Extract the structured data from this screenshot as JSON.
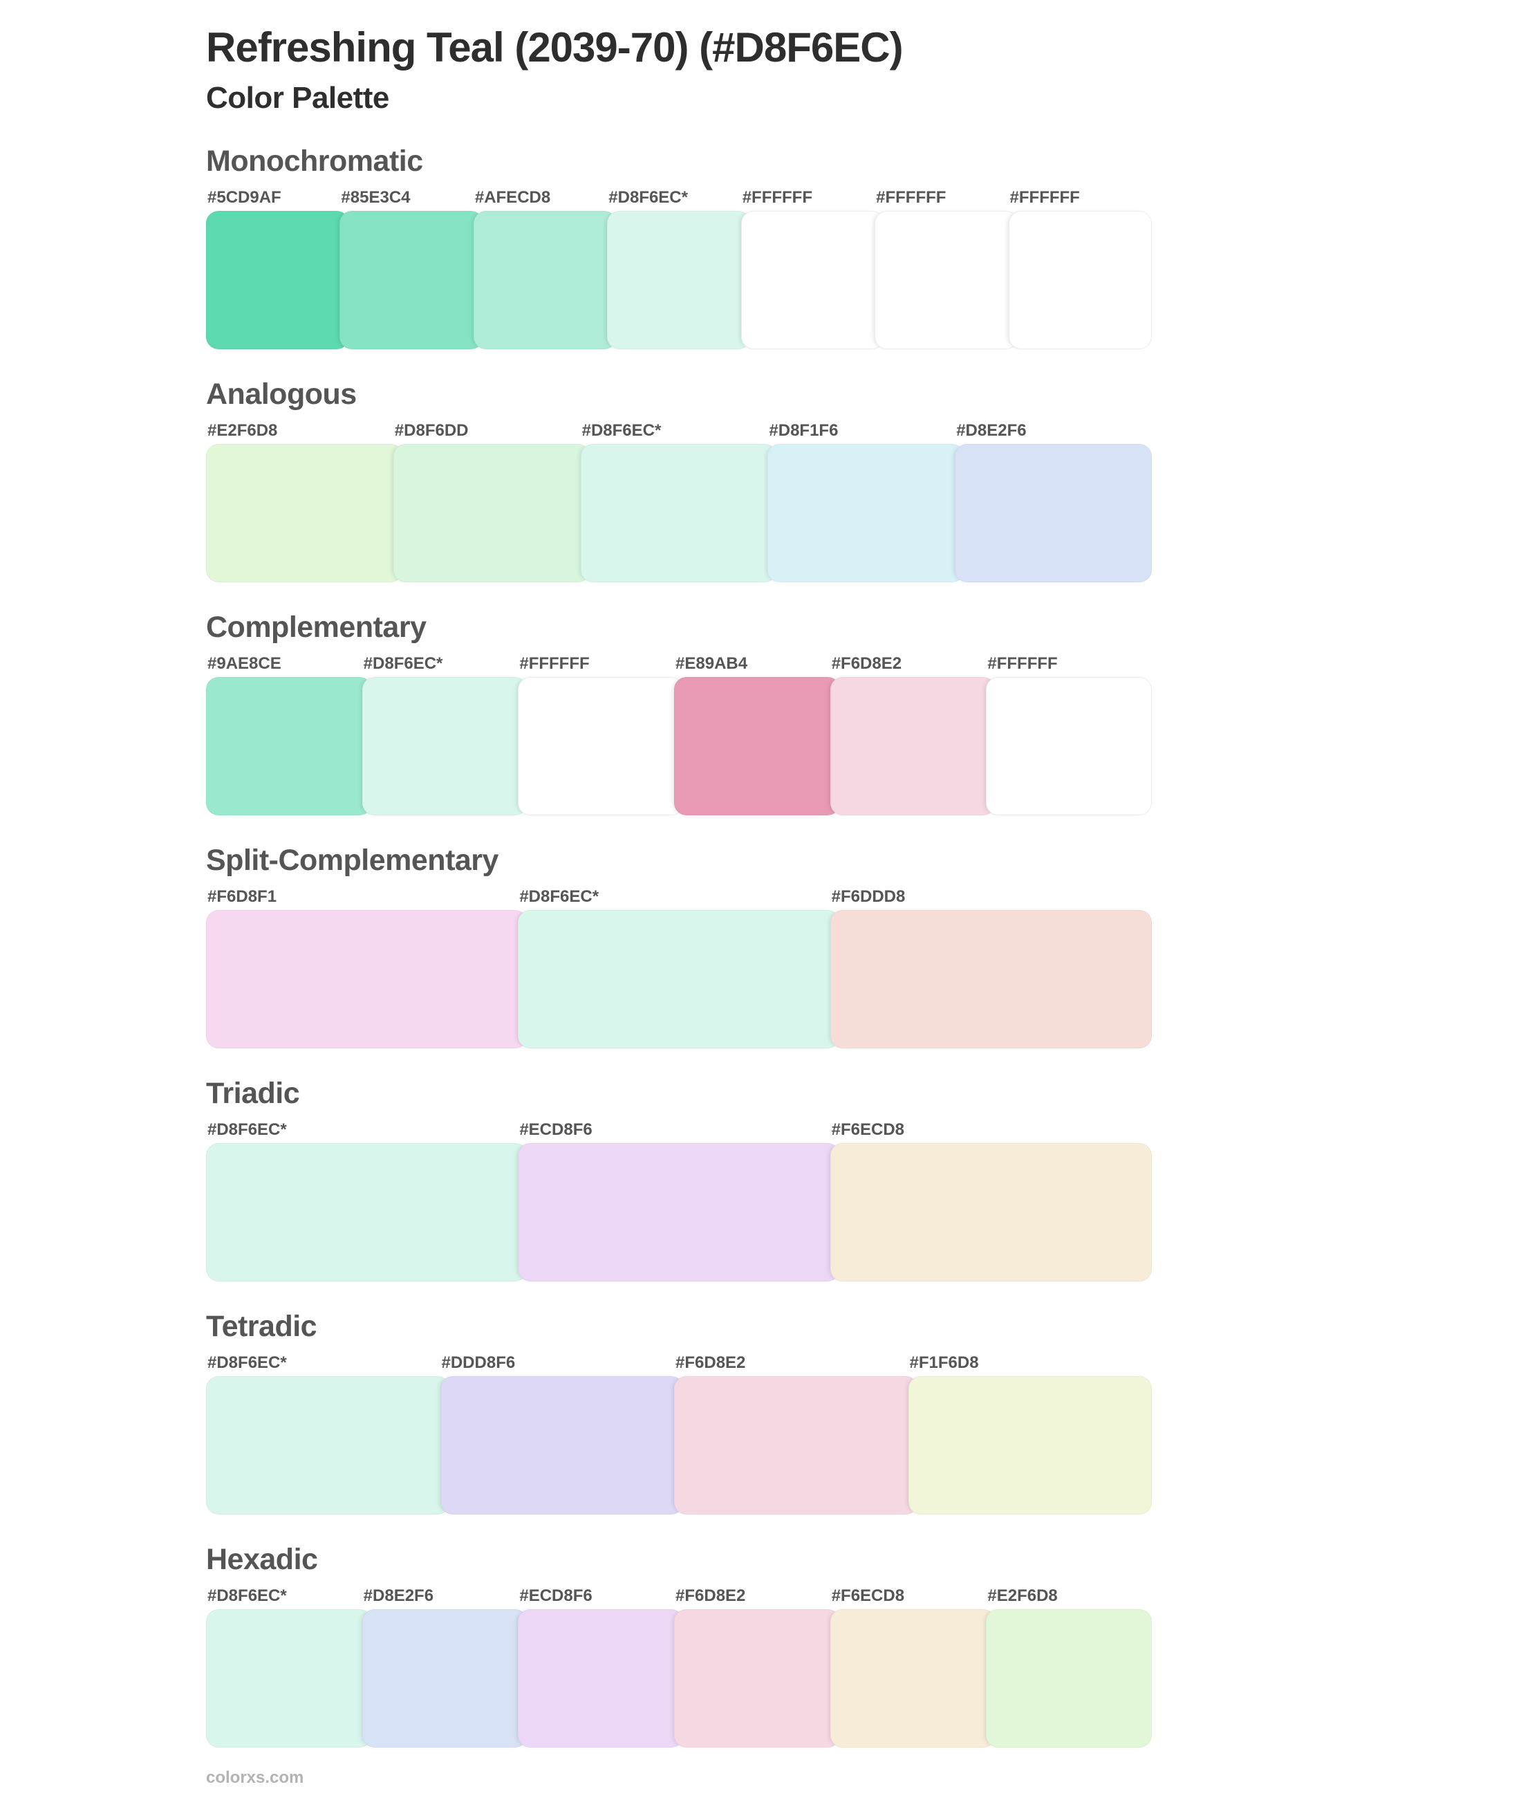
{
  "page": {
    "title": "Refreshing Teal (2039-70) (#D8F6EC)",
    "subtitle": "Color Palette",
    "footer": "colorxs.com"
  },
  "theme": {
    "background": "#FFFFFF",
    "title_color": "#2E2E2E",
    "heading_color": "#555555",
    "label_color": "#555555",
    "footer_color": "#B3B3B3",
    "white_swatch_border": "#ECECEC",
    "base_color": "#D8F6EC"
  },
  "sections": [
    {
      "name": "Monochromatic",
      "swatches": [
        {
          "label": "#5CD9AF",
          "color": "#5CD9AF"
        },
        {
          "label": "#85E3C4",
          "color": "#85E3C4"
        },
        {
          "label": "#AFECD8",
          "color": "#AFECD8"
        },
        {
          "label": "#D8F6EC*",
          "color": "#D8F6EC"
        },
        {
          "label": "#FFFFFF",
          "color": "#FFFFFF"
        },
        {
          "label": "#FFFFFF",
          "color": "#FFFFFF"
        },
        {
          "label": "#FFFFFF",
          "color": "#FFFFFF"
        }
      ]
    },
    {
      "name": "Analogous",
      "swatches": [
        {
          "label": "#E2F6D8",
          "color": "#E2F6D8"
        },
        {
          "label": "#D8F6DD",
          "color": "#D8F6DD"
        },
        {
          "label": "#D8F6EC*",
          "color": "#D8F6EC"
        },
        {
          "label": "#D8F1F6",
          "color": "#D8F1F6"
        },
        {
          "label": "#D8E2F6",
          "color": "#D8E2F6"
        }
      ]
    },
    {
      "name": "Complementary",
      "swatches": [
        {
          "label": "#9AE8CE",
          "color": "#9AE8CE"
        },
        {
          "label": "#D8F6EC*",
          "color": "#D8F6EC"
        },
        {
          "label": "#FFFFFF",
          "color": "#FFFFFF"
        },
        {
          "label": "#E89AB4",
          "color": "#E89AB4"
        },
        {
          "label": "#F6D8E2",
          "color": "#F6D8E2"
        },
        {
          "label": "#FFFFFF",
          "color": "#FFFFFF"
        }
      ]
    },
    {
      "name": "Split-Complementary",
      "swatches": [
        {
          "label": "#F6D8F1",
          "color": "#F6D8F1"
        },
        {
          "label": "#D8F6EC*",
          "color": "#D8F6EC"
        },
        {
          "label": "#F6DDD8",
          "color": "#F6DDD8"
        }
      ]
    },
    {
      "name": "Triadic",
      "swatches": [
        {
          "label": "#D8F6EC*",
          "color": "#D8F6EC"
        },
        {
          "label": "#ECD8F6",
          "color": "#ECD8F6"
        },
        {
          "label": "#F6ECD8",
          "color": "#F6ECD8"
        }
      ]
    },
    {
      "name": "Tetradic",
      "swatches": [
        {
          "label": "#D8F6EC*",
          "color": "#D8F6EC"
        },
        {
          "label": "#DDD8F6",
          "color": "#DDD8F6"
        },
        {
          "label": "#F6D8E2",
          "color": "#F6D8E2"
        },
        {
          "label": "#F1F6D8",
          "color": "#F1F6D8"
        }
      ]
    },
    {
      "name": "Hexadic",
      "swatches": [
        {
          "label": "#D8F6EC*",
          "color": "#D8F6EC"
        },
        {
          "label": "#D8E2F6",
          "color": "#D8E2F6"
        },
        {
          "label": "#ECD8F6",
          "color": "#ECD8F6"
        },
        {
          "label": "#F6D8E2",
          "color": "#F6D8E2"
        },
        {
          "label": "#F6ECD8",
          "color": "#F6ECD8"
        },
        {
          "label": "#E2F6D8",
          "color": "#E2F6D8"
        }
      ]
    }
  ]
}
